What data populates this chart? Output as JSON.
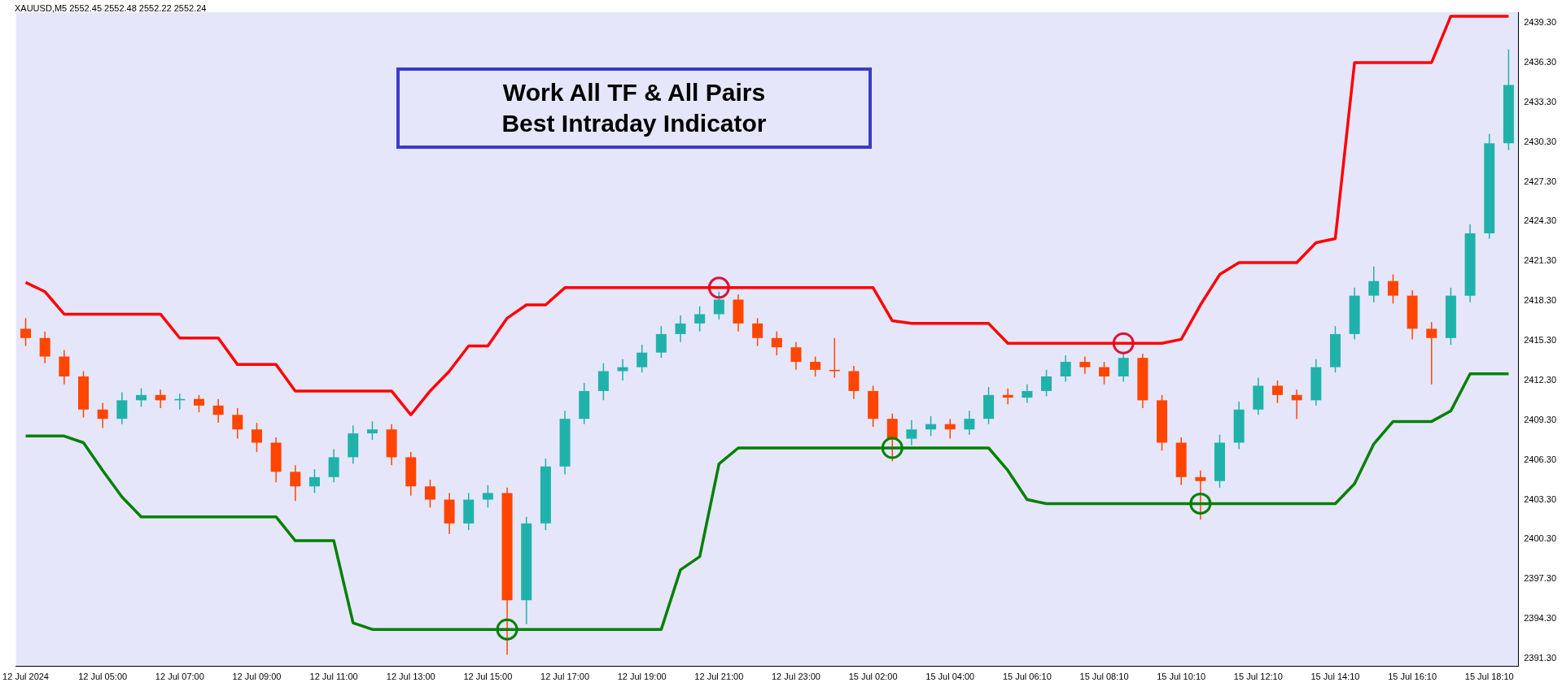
{
  "chart_data": {
    "type": "candlestick",
    "title": "XAUUSD,M5 2552.45 2552.48 2552.22 2552.24",
    "categories": [
      "12 Jul 2024",
      null,
      null,
      null,
      "12 Jul 05:00",
      null,
      null,
      null,
      "12 Jul 07:00",
      null,
      null,
      null,
      "12 Jul 09:00",
      null,
      null,
      null,
      "12 Jul 11:00",
      null,
      null,
      null,
      "12 Jul 13:00",
      null,
      null,
      null,
      "12 Jul 15:00",
      null,
      null,
      null,
      "12 Jul 17:00",
      null,
      null,
      null,
      "12 Jul 19:00",
      null,
      null,
      null,
      "12 Jul 21:00",
      null,
      null,
      null,
      "12 Jul 23:00",
      null,
      null,
      null,
      "15 Jul 02:00",
      null,
      null,
      null,
      "15 Jul 04:00",
      null,
      null,
      null,
      "15 Jul 06:10",
      null,
      null,
      null,
      "15 Jul 08:10",
      null,
      null,
      null,
      "15 Jul 10:10",
      null,
      null,
      null,
      "15 Jul 12:10",
      null,
      null,
      null,
      "15 Jul 14:10",
      null,
      null,
      null,
      "15 Jul 16:10",
      null,
      null,
      null,
      "15 Jul 18:10",
      null
    ],
    "ohlc": [
      [
        2416.2,
        2417.0,
        2414.9,
        2415.5
      ],
      [
        2415.5,
        2416.0,
        2413.6,
        2414.1
      ],
      [
        2414.1,
        2414.6,
        2412.0,
        2412.6
      ],
      [
        2412.6,
        2413.0,
        2409.5,
        2410.1
      ],
      [
        2410.1,
        2410.6,
        2408.7,
        2409.4
      ],
      [
        2409.4,
        2411.4,
        2409.0,
        2410.8
      ],
      [
        2410.8,
        2411.7,
        2410.3,
        2411.2
      ],
      [
        2411.2,
        2411.6,
        2410.2,
        2410.8
      ],
      [
        2410.8,
        2411.3,
        2410.1,
        2410.9
      ],
      [
        2410.9,
        2411.2,
        2409.9,
        2410.4
      ],
      [
        2410.4,
        2410.9,
        2409.1,
        2409.7
      ],
      [
        2409.7,
        2410.2,
        2407.9,
        2408.6
      ],
      [
        2408.6,
        2409.1,
        2406.9,
        2407.6
      ],
      [
        2407.6,
        2408.0,
        2404.6,
        2405.4
      ],
      [
        2405.4,
        2405.9,
        2403.2,
        2404.3
      ],
      [
        2404.3,
        2405.6,
        2403.8,
        2405.0
      ],
      [
        2405.0,
        2407.1,
        2404.6,
        2406.5
      ],
      [
        2406.5,
        2408.9,
        2406.0,
        2408.3
      ],
      [
        2408.3,
        2409.2,
        2407.8,
        2408.6
      ],
      [
        2408.6,
        2409.0,
        2405.9,
        2406.5
      ],
      [
        2406.5,
        2406.9,
        2403.6,
        2404.3
      ],
      [
        2404.3,
        2404.8,
        2402.7,
        2403.3
      ],
      [
        2403.3,
        2403.8,
        2400.7,
        2401.5
      ],
      [
        2401.5,
        2403.8,
        2401.0,
        2403.3
      ],
      [
        2403.3,
        2404.4,
        2402.7,
        2403.8
      ],
      [
        2403.8,
        2404.2,
        2391.6,
        2395.7
      ],
      [
        2395.7,
        2402.0,
        2393.9,
        2401.5
      ],
      [
        2401.5,
        2406.4,
        2401.0,
        2405.8
      ],
      [
        2405.8,
        2410.0,
        2405.2,
        2409.4
      ],
      [
        2409.4,
        2412.1,
        2409.0,
        2411.5
      ],
      [
        2411.5,
        2413.6,
        2410.8,
        2413.0
      ],
      [
        2413.0,
        2413.9,
        2412.3,
        2413.3
      ],
      [
        2413.3,
        2415.0,
        2412.9,
        2414.4
      ],
      [
        2414.4,
        2416.4,
        2414.0,
        2415.8
      ],
      [
        2415.8,
        2417.2,
        2415.2,
        2416.6
      ],
      [
        2416.6,
        2417.9,
        2416.0,
        2417.3
      ],
      [
        2417.3,
        2419.0,
        2416.9,
        2418.4
      ],
      [
        2418.4,
        2418.8,
        2416.0,
        2416.6
      ],
      [
        2416.6,
        2417.0,
        2414.9,
        2415.5
      ],
      [
        2415.5,
        2416.0,
        2414.2,
        2414.8
      ],
      [
        2414.8,
        2415.2,
        2413.1,
        2413.7
      ],
      [
        2413.7,
        2414.1,
        2412.6,
        2413.1
      ],
      [
        2413.1,
        2415.5,
        2412.5,
        2413.0
      ],
      [
        2413.0,
        2413.4,
        2410.9,
        2411.5
      ],
      [
        2411.5,
        2411.9,
        2408.8,
        2409.4
      ],
      [
        2409.4,
        2409.8,
        2406.2,
        2407.9
      ],
      [
        2407.9,
        2409.3,
        2407.4,
        2408.6
      ],
      [
        2408.6,
        2409.6,
        2408.1,
        2409.0
      ],
      [
        2409.0,
        2409.4,
        2407.9,
        2408.6
      ],
      [
        2408.6,
        2410.0,
        2408.2,
        2409.4
      ],
      [
        2409.4,
        2411.8,
        2409.0,
        2411.2
      ],
      [
        2411.2,
        2411.7,
        2410.5,
        2411.0
      ],
      [
        2411.0,
        2412.0,
        2410.6,
        2411.5
      ],
      [
        2411.5,
        2413.1,
        2411.1,
        2412.6
      ],
      [
        2412.6,
        2414.2,
        2412.2,
        2413.7
      ],
      [
        2413.7,
        2414.1,
        2412.8,
        2413.3
      ],
      [
        2413.3,
        2413.7,
        2412.0,
        2412.6
      ],
      [
        2412.6,
        2414.4,
        2412.2,
        2414.0
      ],
      [
        2414.0,
        2414.3,
        2410.2,
        2410.8
      ],
      [
        2410.8,
        2411.2,
        2407.0,
        2407.6
      ],
      [
        2407.6,
        2408.0,
        2404.4,
        2405.0
      ],
      [
        2405.0,
        2405.5,
        2401.8,
        2404.7
      ],
      [
        2404.7,
        2408.2,
        2404.2,
        2407.6
      ],
      [
        2407.6,
        2410.7,
        2407.1,
        2410.1
      ],
      [
        2410.1,
        2412.5,
        2409.7,
        2411.9
      ],
      [
        2411.9,
        2412.3,
        2410.6,
        2411.2
      ],
      [
        2411.2,
        2411.6,
        2409.4,
        2410.8
      ],
      [
        2410.8,
        2413.9,
        2410.4,
        2413.3
      ],
      [
        2413.3,
        2416.4,
        2412.9,
        2415.8
      ],
      [
        2415.8,
        2419.3,
        2415.4,
        2418.7
      ],
      [
        2418.7,
        2420.9,
        2418.2,
        2419.8
      ],
      [
        2419.8,
        2420.3,
        2418.1,
        2418.7
      ],
      [
        2418.7,
        2419.1,
        2415.4,
        2416.2
      ],
      [
        2416.2,
        2416.7,
        2412.0,
        2415.5
      ],
      [
        2415.5,
        2419.3,
        2415.0,
        2418.7
      ],
      [
        2418.7,
        2424.1,
        2418.2,
        2423.4
      ],
      [
        2423.4,
        2430.9,
        2423.0,
        2430.2
      ],
      [
        2430.2,
        2437.3,
        2429.7,
        2434.6
      ]
    ],
    "colors": [
      "#ff4500",
      "#ff4500",
      "#ff4500",
      "#ff4500",
      "#ff4500",
      "#20b2aa",
      "#20b2aa",
      "#ff4500",
      "#20b2aa",
      "#ff4500",
      "#ff4500",
      "#ff4500",
      "#ff4500",
      "#ff4500",
      "#ff4500",
      "#20b2aa",
      "#20b2aa",
      "#20b2aa",
      "#20b2aa",
      "#ff4500",
      "#ff4500",
      "#ff4500",
      "#ff4500",
      "#20b2aa",
      "#20b2aa",
      "#ff4500",
      "#20b2aa",
      "#20b2aa",
      "#20b2aa",
      "#20b2aa",
      "#20b2aa",
      "#20b2aa",
      "#20b2aa",
      "#20b2aa",
      "#20b2aa",
      "#20b2aa",
      "#20b2aa",
      "#ff4500",
      "#ff4500",
      "#ff4500",
      "#ff4500",
      "#ff4500",
      "#ff4500",
      "#ff4500",
      "#ff4500",
      "#ff4500",
      "#20b2aa",
      "#20b2aa",
      "#ff4500",
      "#20b2aa",
      "#20b2aa",
      "#ff4500",
      "#20b2aa",
      "#20b2aa",
      "#20b2aa",
      "#ff4500",
      "#ff4500",
      "#20b2aa",
      "#ff4500",
      "#ff4500",
      "#ff4500",
      "#ff4500",
      "#20b2aa",
      "#20b2aa",
      "#20b2aa",
      "#ff4500",
      "#ff4500",
      "#20b2aa",
      "#20b2aa",
      "#20b2aa",
      "#20b2aa",
      "#ff4500",
      "#ff4500",
      "#ff4500",
      "#20b2aa",
      "#20b2aa",
      "#20b2aa",
      "#20b2aa"
    ],
    "series": [
      {
        "type": "line",
        "color": "#ff0000",
        "values": [
          2419.7,
          2419.0,
          2417.3,
          2417.3,
          2417.3,
          2417.3,
          2417.3,
          2417.3,
          2415.5,
          2415.5,
          2415.5,
          2413.5,
          2413.5,
          2413.5,
          2411.5,
          2411.5,
          2411.5,
          2411.5,
          2411.5,
          2411.5,
          2409.7,
          2411.5,
          2413.0,
          2414.9,
          2414.9,
          2417.0,
          2418.0,
          2418.0,
          2419.3,
          2419.3,
          2419.3,
          2419.3,
          2419.3,
          2419.3,
          2419.3,
          2419.3,
          2419.3,
          2419.3,
          2419.3,
          2419.3,
          2419.3,
          2419.3,
          2419.3,
          2419.3,
          2419.3,
          2416.8,
          2416.6,
          2416.6,
          2416.6,
          2416.6,
          2416.6,
          2415.1,
          2415.1,
          2415.1,
          2415.1,
          2415.1,
          2415.1,
          2415.1,
          2415.1,
          2415.1,
          2415.4,
          2418.0,
          2420.3,
          2421.2,
          2421.2,
          2421.2,
          2421.2,
          2422.7,
          2423.0,
          2436.3,
          2436.3,
          2436.3,
          2436.3,
          2436.3,
          2439.8,
          2439.8,
          2439.8,
          2439.8
        ]
      },
      {
        "type": "line",
        "color": "#008000",
        "values": [
          2408.1,
          2408.1,
          2408.1,
          2407.6,
          2405.5,
          2403.5,
          2402.0,
          2402.0,
          2402.0,
          2402.0,
          2402.0,
          2402.0,
          2402.0,
          2402.0,
          2400.2,
          2400.2,
          2400.2,
          2394.0,
          2393.5,
          2393.5,
          2393.5,
          2393.5,
          2393.5,
          2393.5,
          2393.5,
          2393.5,
          2393.5,
          2393.5,
          2393.5,
          2393.5,
          2393.5,
          2393.5,
          2393.5,
          2393.5,
          2398.0,
          2399.0,
          2406.0,
          2407.2,
          2407.2,
          2407.2,
          2407.2,
          2407.2,
          2407.2,
          2407.2,
          2407.2,
          2407.2,
          2407.2,
          2407.2,
          2407.2,
          2407.2,
          2407.2,
          2405.5,
          2403.3,
          2403.0,
          2403.0,
          2403.0,
          2403.0,
          2403.0,
          2403.0,
          2403.0,
          2403.0,
          2403.0,
          2403.0,
          2403.0,
          2403.0,
          2403.0,
          2403.0,
          2403.0,
          2403.0,
          2404.5,
          2407.5,
          2409.2,
          2409.2,
          2409.2,
          2410.0,
          2412.8,
          2412.8,
          2412.8
        ]
      },
      {
        "type": "scatter",
        "marker": "circle",
        "color": "#dc143c",
        "values": [
          null,
          null,
          null,
          null,
          null,
          null,
          null,
          null,
          null,
          null,
          null,
          null,
          null,
          null,
          null,
          null,
          null,
          null,
          null,
          null,
          null,
          null,
          null,
          null,
          null,
          null,
          null,
          null,
          null,
          null,
          null,
          null,
          null,
          null,
          null,
          null,
          2419.3,
          null,
          null,
          null,
          null,
          null,
          null,
          null,
          null,
          null,
          null,
          null,
          null,
          null,
          null,
          null,
          null,
          null,
          null,
          null,
          null,
          2415.1,
          null,
          null,
          null,
          null,
          null,
          null,
          null,
          null,
          null,
          null,
          null,
          null,
          null,
          null,
          null,
          null,
          null,
          null,
          null,
          null
        ]
      },
      {
        "type": "scatter",
        "marker": "circle",
        "color": "#008000",
        "values": [
          null,
          null,
          null,
          null,
          null,
          null,
          null,
          null,
          null,
          null,
          null,
          null,
          null,
          null,
          null,
          null,
          null,
          null,
          null,
          null,
          null,
          null,
          null,
          null,
          null,
          2393.5,
          null,
          null,
          null,
          null,
          null,
          null,
          null,
          null,
          null,
          null,
          null,
          null,
          null,
          null,
          null,
          null,
          null,
          null,
          null,
          2407.2,
          null,
          null,
          null,
          null,
          null,
          null,
          null,
          null,
          null,
          null,
          null,
          null,
          null,
          null,
          null,
          2403.0,
          null,
          null,
          null,
          null,
          null,
          null,
          null,
          null,
          null,
          null,
          null,
          null,
          null,
          null,
          null,
          null
        ]
      }
    ],
    "ylim": [
      2390.7,
      2440.1
    ],
    "yticks": [
      {
        "value": 2391.3,
        "label": "2391.30"
      },
      {
        "value": 2394.3,
        "label": "2394.30"
      },
      {
        "value": 2397.3,
        "label": "2397.30"
      },
      {
        "value": 2400.3,
        "label": "2400.30"
      },
      {
        "value": 2403.3,
        "label": "2403.30"
      },
      {
        "value": 2406.3,
        "label": "2406.30"
      },
      {
        "value": 2409.3,
        "label": "2409.30"
      },
      {
        "value": 2412.3,
        "label": "2412.30"
      },
      {
        "value": 2415.3,
        "label": "2415.30"
      },
      {
        "value": 2418.3,
        "label": "2418.30"
      },
      {
        "value": 2421.3,
        "label": "2421.30"
      },
      {
        "value": 2424.3,
        "label": "2424.30"
      },
      {
        "value": 2427.3,
        "label": "2427.30"
      },
      {
        "value": 2430.3,
        "label": "2430.30"
      },
      {
        "value": 2433.3,
        "label": "2433.30"
      },
      {
        "value": 2436.3,
        "label": "2436.30"
      },
      {
        "value": 2439.3,
        "label": "2439.30"
      }
    ],
    "annotations": [
      "Work All TF & All Pairs",
      "Best Intraday Indicator"
    ],
    "grid": false,
    "legend": false
  }
}
